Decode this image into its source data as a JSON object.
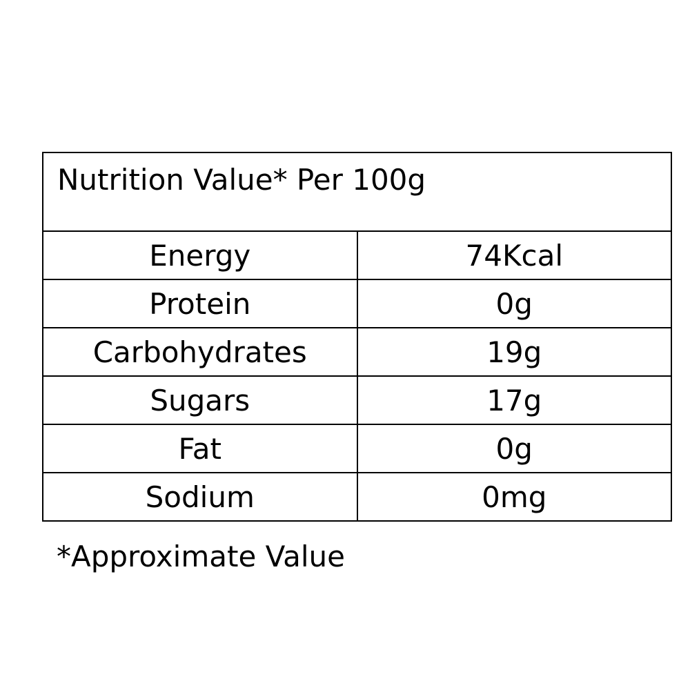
{
  "table": {
    "title": "Nutrition Value* Per 100g",
    "rows": [
      [
        "Energy",
        "74Kcal"
      ],
      [
        "Protein",
        "0g"
      ],
      [
        "Carbohydrates",
        "19g"
      ],
      [
        "Sugars",
        "17g"
      ],
      [
        "Fat",
        "0g"
      ],
      [
        "Sodium",
        "0mg"
      ]
    ]
  },
  "footnote": "*Approximate Value"
}
